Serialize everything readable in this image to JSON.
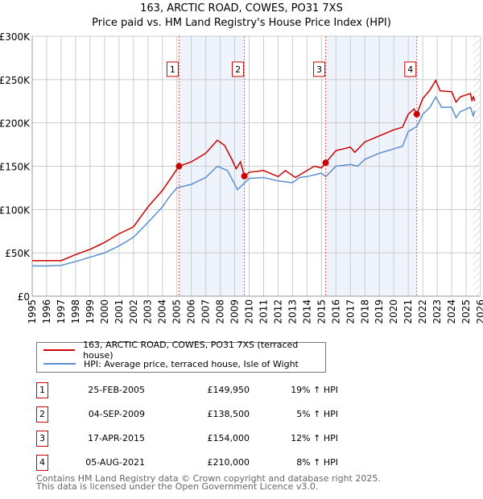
{
  "title": "163, ARCTIC ROAD, COWES, PO31 7XS",
  "subtitle": "Price paid vs. HM Land Registry's House Price Index (HPI)",
  "colors": {
    "property": "#cc0000",
    "hpi": "#5b8fd0",
    "shade": "#eef3fc"
  },
  "chart_data": {
    "type": "line",
    "xlim": [
      1995,
      2026
    ],
    "ylim": [
      0,
      300000
    ],
    "yticks": [
      0,
      50000,
      100000,
      150000,
      200000,
      250000,
      300000
    ],
    "ytick_labels": [
      "£0",
      "£50K",
      "£100K",
      "£150K",
      "£200K",
      "£250K",
      "£300K"
    ],
    "xticks": [
      "1995",
      "1996",
      "1997",
      "1998",
      "1999",
      "2000",
      "2001",
      "2002",
      "2003",
      "2004",
      "2005",
      "2006",
      "2007",
      "2008",
      "2009",
      "2010",
      "2011",
      "2012",
      "2013",
      "2014",
      "2015",
      "2016",
      "2017",
      "2018",
      "2019",
      "2020",
      "2021",
      "2022",
      "2023",
      "2024",
      "2025",
      "2026"
    ],
    "grid": true,
    "forecast_hatch_from": 2025.5,
    "series": [
      {
        "name": "163, ARCTIC ROAD, COWES, PO31 7XS (terraced house)",
        "color": "#cc0000",
        "points": [
          [
            1995,
            41000
          ],
          [
            1996,
            41000
          ],
          [
            1997,
            41000
          ],
          [
            1998,
            48000
          ],
          [
            1999,
            54000
          ],
          [
            2000,
            62000
          ],
          [
            2001,
            72000
          ],
          [
            2002,
            80000
          ],
          [
            2003,
            103000
          ],
          [
            2004,
            122000
          ],
          [
            2005.15,
            149950
          ],
          [
            2005.5,
            152000
          ],
          [
            2006,
            155000
          ],
          [
            2007,
            165000
          ],
          [
            2007.8,
            180000
          ],
          [
            2008.3,
            174000
          ],
          [
            2008.8,
            158000
          ],
          [
            2009.1,
            147000
          ],
          [
            2009.4,
            155000
          ],
          [
            2009.67,
            138500
          ],
          [
            2010,
            143000
          ],
          [
            2011,
            145000
          ],
          [
            2012,
            138000
          ],
          [
            2012.5,
            145000
          ],
          [
            2013.2,
            137000
          ],
          [
            2014,
            145000
          ],
          [
            2014.5,
            150000
          ],
          [
            2015,
            148000
          ],
          [
            2015.29,
            154000
          ],
          [
            2016,
            168000
          ],
          [
            2017,
            172000
          ],
          [
            2017.3,
            166000
          ],
          [
            2018,
            178000
          ],
          [
            2019,
            185000
          ],
          [
            2020,
            192000
          ],
          [
            2020.6,
            195000
          ],
          [
            2021,
            210000
          ],
          [
            2021.4,
            216000
          ],
          [
            2021.59,
            210000
          ],
          [
            2022,
            228000
          ],
          [
            2022.5,
            238000
          ],
          [
            2022.9,
            249000
          ],
          [
            2023.2,
            237000
          ],
          [
            2024,
            236000
          ],
          [
            2024.3,
            224000
          ],
          [
            2024.6,
            230000
          ],
          [
            2025.3,
            234000
          ],
          [
            2025.4,
            226000
          ],
          [
            2025.5,
            230000
          ],
          [
            2025.6,
            225000
          ]
        ]
      },
      {
        "name": "HPI: Average price, terraced house, Isle of Wight",
        "color": "#5b8fd0",
        "points": [
          [
            1995,
            35000
          ],
          [
            1996,
            35000
          ],
          [
            1997,
            35500
          ],
          [
            1998,
            40000
          ],
          [
            1999,
            45000
          ],
          [
            2000,
            50000
          ],
          [
            2001,
            58000
          ],
          [
            2002,
            68000
          ],
          [
            2003,
            85000
          ],
          [
            2004,
            103000
          ],
          [
            2004.5,
            115000
          ],
          [
            2005,
            125000
          ],
          [
            2006,
            129000
          ],
          [
            2007,
            137000
          ],
          [
            2007.8,
            150000
          ],
          [
            2008.5,
            145000
          ],
          [
            2009.2,
            123000
          ],
          [
            2009.7,
            131000
          ],
          [
            2010,
            136000
          ],
          [
            2011,
            137000
          ],
          [
            2012,
            133000
          ],
          [
            2013,
            131000
          ],
          [
            2013.5,
            137000
          ],
          [
            2014,
            138000
          ],
          [
            2015,
            142000
          ],
          [
            2015.3,
            138000
          ],
          [
            2016,
            150000
          ],
          [
            2017,
            152000
          ],
          [
            2017.5,
            150000
          ],
          [
            2018,
            158000
          ],
          [
            2019,
            165000
          ],
          [
            2020,
            170000
          ],
          [
            2020.6,
            173000
          ],
          [
            2021,
            190000
          ],
          [
            2021.6,
            196000
          ],
          [
            2022,
            210000
          ],
          [
            2022.5,
            218000
          ],
          [
            2022.9,
            230000
          ],
          [
            2023.3,
            218000
          ],
          [
            2024,
            218000
          ],
          [
            2024.3,
            206000
          ],
          [
            2024.6,
            213000
          ],
          [
            2025.3,
            218000
          ],
          [
            2025.5,
            208000
          ],
          [
            2025.6,
            214000
          ]
        ]
      }
    ],
    "sales": [
      {
        "label": "1",
        "x": 2005.15,
        "price": 149950
      },
      {
        "label": "2",
        "x": 2009.67,
        "price": 138500
      },
      {
        "label": "3",
        "x": 2015.29,
        "price": 154000
      },
      {
        "label": "4",
        "x": 2021.59,
        "price": 210000
      }
    ]
  },
  "legend": {
    "property": "163, ARCTIC ROAD, COWES, PO31 7XS (terraced house)",
    "hpi": "HPI: Average price, terraced house, Isle of Wight"
  },
  "transactions": [
    {
      "num": "1",
      "date": "25-FEB-2005",
      "price": "£149,950",
      "hpi": "19% ↑ HPI"
    },
    {
      "num": "2",
      "date": "04-SEP-2009",
      "price": "£138,500",
      "hpi": "5% ↑ HPI"
    },
    {
      "num": "3",
      "date": "17-APR-2015",
      "price": "£154,000",
      "hpi": "12% ↑ HPI"
    },
    {
      "num": "4",
      "date": "05-AUG-2021",
      "price": "£210,000",
      "hpi": "8% ↑ HPI"
    }
  ],
  "footer": {
    "line1": "Contains HM Land Registry data © Crown copyright and database right 2025.",
    "line2": "This data is licensed under the Open Government Licence v3.0."
  }
}
